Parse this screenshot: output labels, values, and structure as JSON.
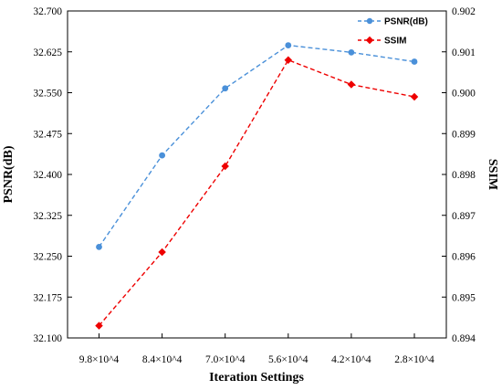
{
  "chart_data": {
    "type": "line",
    "xlabel": "Iteration Settings",
    "ylabel_left": "PSNR(dB)",
    "ylabel_right": "SSIM",
    "categories": [
      "9.8×10^4",
      "8.4×10^4",
      "7.0×10^4",
      "5.6×10^4",
      "4.2×10^4",
      "2.8×10^4"
    ],
    "y_left": {
      "range": [
        32.1,
        32.7
      ],
      "ticks": [
        "32.100",
        "32.175",
        "32.250",
        "32.325",
        "32.400",
        "32.475",
        "32.550",
        "32.625",
        "32.700"
      ]
    },
    "y_right": {
      "range": [
        0.894,
        0.902
      ],
      "ticks": [
        "0.894",
        "0.895",
        "0.896",
        "0.897",
        "0.898",
        "0.899",
        "0.900",
        "0.901",
        "0.902"
      ]
    },
    "series": [
      {
        "name": "PSNR(dB)",
        "axis": "left",
        "color": "#4a90d9",
        "marker": "circle",
        "line_style": "dashed",
        "values": [
          32.267,
          32.435,
          32.558,
          32.637,
          32.624,
          32.607
        ]
      },
      {
        "name": "SSIM",
        "axis": "right",
        "color": "#ee0000",
        "marker": "diamond",
        "line_style": "dashed",
        "values": [
          0.8943,
          0.8961,
          0.8982,
          0.9008,
          0.9002,
          0.8999
        ]
      }
    ],
    "grid": false,
    "legend_position": "top-right"
  }
}
